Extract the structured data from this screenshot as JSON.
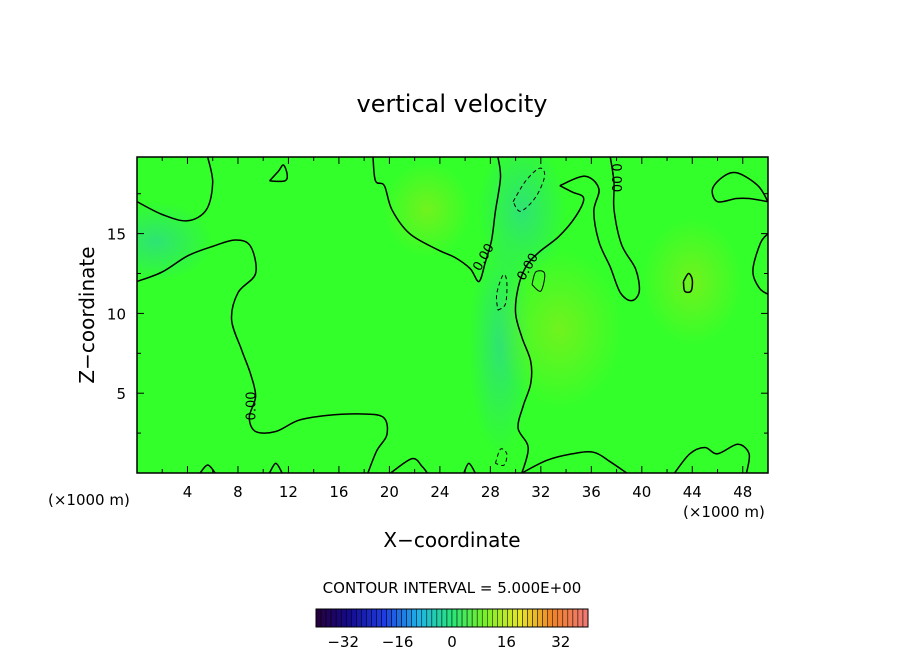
{
  "chart_data": {
    "type": "contour",
    "title": "vertical velocity",
    "xlabel": "X−coordinate",
    "ylabel": "Z−coordinate",
    "x_unit_label": "(×1000 m)",
    "x_ticks": [
      4,
      8,
      12,
      16,
      20,
      24,
      28,
      32,
      36,
      40,
      44,
      48
    ],
    "x_tick_labels": [
      "4",
      "8",
      "12",
      "16",
      "20",
      "24",
      "28",
      "32",
      "36",
      "40",
      "44",
      "48"
    ],
    "y_ticks": [
      5,
      10,
      15
    ],
    "y_tick_labels": [
      "5",
      "10",
      "15"
    ],
    "xlim": [
      0,
      50
    ],
    "ylim": [
      0,
      19.8
    ],
    "contour_interval_text": "CONTOUR INTERVAL = 5.000E+00",
    "contour_interval": 5.0,
    "contour_labels": [
      "0.00",
      "0.00",
      "0.00",
      "0.00"
    ],
    "colorbar": {
      "ticks": [
        -32,
        -16,
        0,
        16,
        32
      ],
      "tick_labels": [
        "−32",
        "−16",
        "0",
        "16",
        "32"
      ],
      "range": [
        -40,
        40
      ]
    },
    "field_colors": {
      "background": "#33ff2a",
      "negative": "#2ee07c",
      "positive": "#6ef21e"
    },
    "zero_contours": [
      [
        [
          0,
          17.0
        ],
        [
          2,
          16.2
        ],
        [
          4,
          15.8
        ],
        [
          5.5,
          16.5
        ],
        [
          6,
          18.2
        ],
        [
          5.6,
          19.8
        ]
      ],
      [
        [
          0,
          12.0
        ],
        [
          2,
          12.6
        ],
        [
          4,
          13.6
        ],
        [
          6,
          14.2
        ],
        [
          7.8,
          14.6
        ],
        [
          9,
          14.2
        ],
        [
          9.4,
          12.5
        ],
        [
          8.0,
          11.3
        ],
        [
          7.5,
          9.6
        ],
        [
          8.3,
          7.7
        ],
        [
          9.0,
          6.2
        ],
        [
          9.4,
          4.8
        ],
        [
          8.9,
          3.5
        ],
        [
          9.4,
          2.6
        ],
        [
          11,
          2.6
        ],
        [
          12.8,
          3.3
        ],
        [
          15,
          3.6
        ],
        [
          17.5,
          3.7
        ],
        [
          19.5,
          3.5
        ],
        [
          19.8,
          2.4
        ],
        [
          19,
          1.4
        ],
        [
          18.3,
          0
        ]
      ],
      [
        [
          18.7,
          19.8
        ],
        [
          18.9,
          18.3
        ],
        [
          19.6,
          18.0
        ],
        [
          20.2,
          16.5
        ],
        [
          21.6,
          15.0
        ],
        [
          23.8,
          14.0
        ],
        [
          25.2,
          13.5
        ],
        [
          26.4,
          12.8
        ],
        [
          27.1,
          12.0
        ],
        [
          27.6,
          13.2
        ],
        [
          28.1,
          14.6
        ],
        [
          28.4,
          16.4
        ],
        [
          28.8,
          18.5
        ],
        [
          28.6,
          19.8
        ]
      ],
      [
        [
          33.5,
          18.0
        ],
        [
          34.5,
          17.6
        ],
        [
          35.4,
          17.2
        ],
        [
          34.7,
          16.0
        ],
        [
          33.4,
          14.8
        ],
        [
          31.8,
          13.8
        ],
        [
          30.8,
          12.9
        ],
        [
          30.2,
          11.6
        ],
        [
          30.0,
          10.0
        ],
        [
          30.5,
          8.5
        ],
        [
          31.2,
          7.0
        ],
        [
          31.2,
          5.6
        ],
        [
          30.6,
          4.2
        ],
        [
          30.2,
          2.8
        ],
        [
          31.0,
          1.6
        ],
        [
          30.5,
          0
        ]
      ],
      [
        [
          30.5,
          0
        ],
        [
          32.5,
          0.8
        ],
        [
          34.5,
          1.2
        ],
        [
          36.2,
          1.3
        ],
        [
          37.5,
          0.7
        ],
        [
          38.8,
          0
        ]
      ],
      [
        [
          33.5,
          18.0
        ],
        [
          35.5,
          18.6
        ],
        [
          36.6,
          17.8
        ],
        [
          36.2,
          16.4
        ],
        [
          36.6,
          14.5
        ],
        [
          37.5,
          12.9
        ],
        [
          38.3,
          11.3
        ],
        [
          39.2,
          10.8
        ],
        [
          39.8,
          11.4
        ],
        [
          39.5,
          12.8
        ],
        [
          38.4,
          14.3
        ],
        [
          37.8,
          16.5
        ],
        [
          37.8,
          18.2
        ],
        [
          37.5,
          19.8
        ]
      ],
      [
        [
          50,
          17.0
        ],
        [
          49.2,
          18.0
        ],
        [
          47.6,
          18.8
        ],
        [
          46.5,
          18.6
        ],
        [
          45.6,
          17.8
        ],
        [
          46.0,
          17.0
        ],
        [
          47.5,
          17.2
        ],
        [
          48.5,
          17.2
        ],
        [
          50,
          17.0
        ]
      ],
      [
        [
          50,
          15.0
        ],
        [
          49.4,
          14.4
        ],
        [
          48.8,
          12.7
        ],
        [
          49.3,
          11.6
        ],
        [
          50,
          11.2
        ]
      ],
      [
        [
          43.3,
          12.0
        ],
        [
          43.7,
          12.5
        ],
        [
          44.0,
          12.1
        ],
        [
          43.9,
          11.4
        ],
        [
          43.4,
          11.4
        ],
        [
          43.3,
          12.0
        ]
      ],
      [
        [
          42.6,
          0
        ],
        [
          43.8,
          1.2
        ],
        [
          45.0,
          1.6
        ],
        [
          46.0,
          1.2
        ],
        [
          47.6,
          1.8
        ],
        [
          48.5,
          1.2
        ],
        [
          48.3,
          0
        ]
      ],
      [
        [
          20.1,
          0
        ],
        [
          21.8,
          0.9
        ],
        [
          22.6,
          0.4
        ],
        [
          23.0,
          0
        ]
      ],
      [
        [
          25.9,
          0
        ],
        [
          26.3,
          0.6
        ],
        [
          26.8,
          0
        ]
      ],
      [
        [
          5.0,
          0
        ],
        [
          5.6,
          0.5
        ],
        [
          6.2,
          0
        ]
      ],
      [
        [
          10.5,
          0
        ],
        [
          11.0,
          0.6
        ],
        [
          11.5,
          0
        ]
      ],
      [
        [
          10.5,
          18.3
        ],
        [
          11.2,
          18.9
        ],
        [
          11.6,
          19.3
        ],
        [
          11.9,
          18.7
        ],
        [
          11.7,
          18.3
        ],
        [
          10.5,
          18.3
        ]
      ]
    ],
    "negative_contours": [
      [
        [
          29.8,
          17.0
        ],
        [
          30.8,
          18.3
        ],
        [
          31.9,
          19.1
        ],
        [
          32.3,
          18.6
        ],
        [
          31.6,
          17.3
        ],
        [
          30.4,
          16.4
        ],
        [
          29.8,
          17.0
        ]
      ],
      [
        [
          28.6,
          10.2
        ],
        [
          29.2,
          10.6
        ],
        [
          29.3,
          12.0
        ],
        [
          29.0,
          12.4
        ],
        [
          28.5,
          11.2
        ],
        [
          28.6,
          10.2
        ]
      ],
      [
        [
          28.4,
          0.6
        ],
        [
          28.8,
          1.5
        ],
        [
          29.3,
          1.2
        ],
        [
          29.1,
          0.5
        ],
        [
          28.4,
          0.6
        ]
      ]
    ],
    "positive_contours": [
      [
        [
          31.3,
          11.8
        ],
        [
          31.6,
          12.6
        ],
        [
          32.3,
          12.5
        ],
        [
          32.0,
          11.4
        ],
        [
          31.3,
          11.8
        ]
      ]
    ],
    "label_points": [
      {
        "x": 9.1,
        "y": 4.2,
        "angle": -90
      },
      {
        "x": 27.5,
        "y": 13.5,
        "angle": -60
      },
      {
        "x": 31.0,
        "y": 12.9,
        "angle": -60
      },
      {
        "x": 37.9,
        "y": 18.5,
        "angle": 90
      }
    ]
  }
}
